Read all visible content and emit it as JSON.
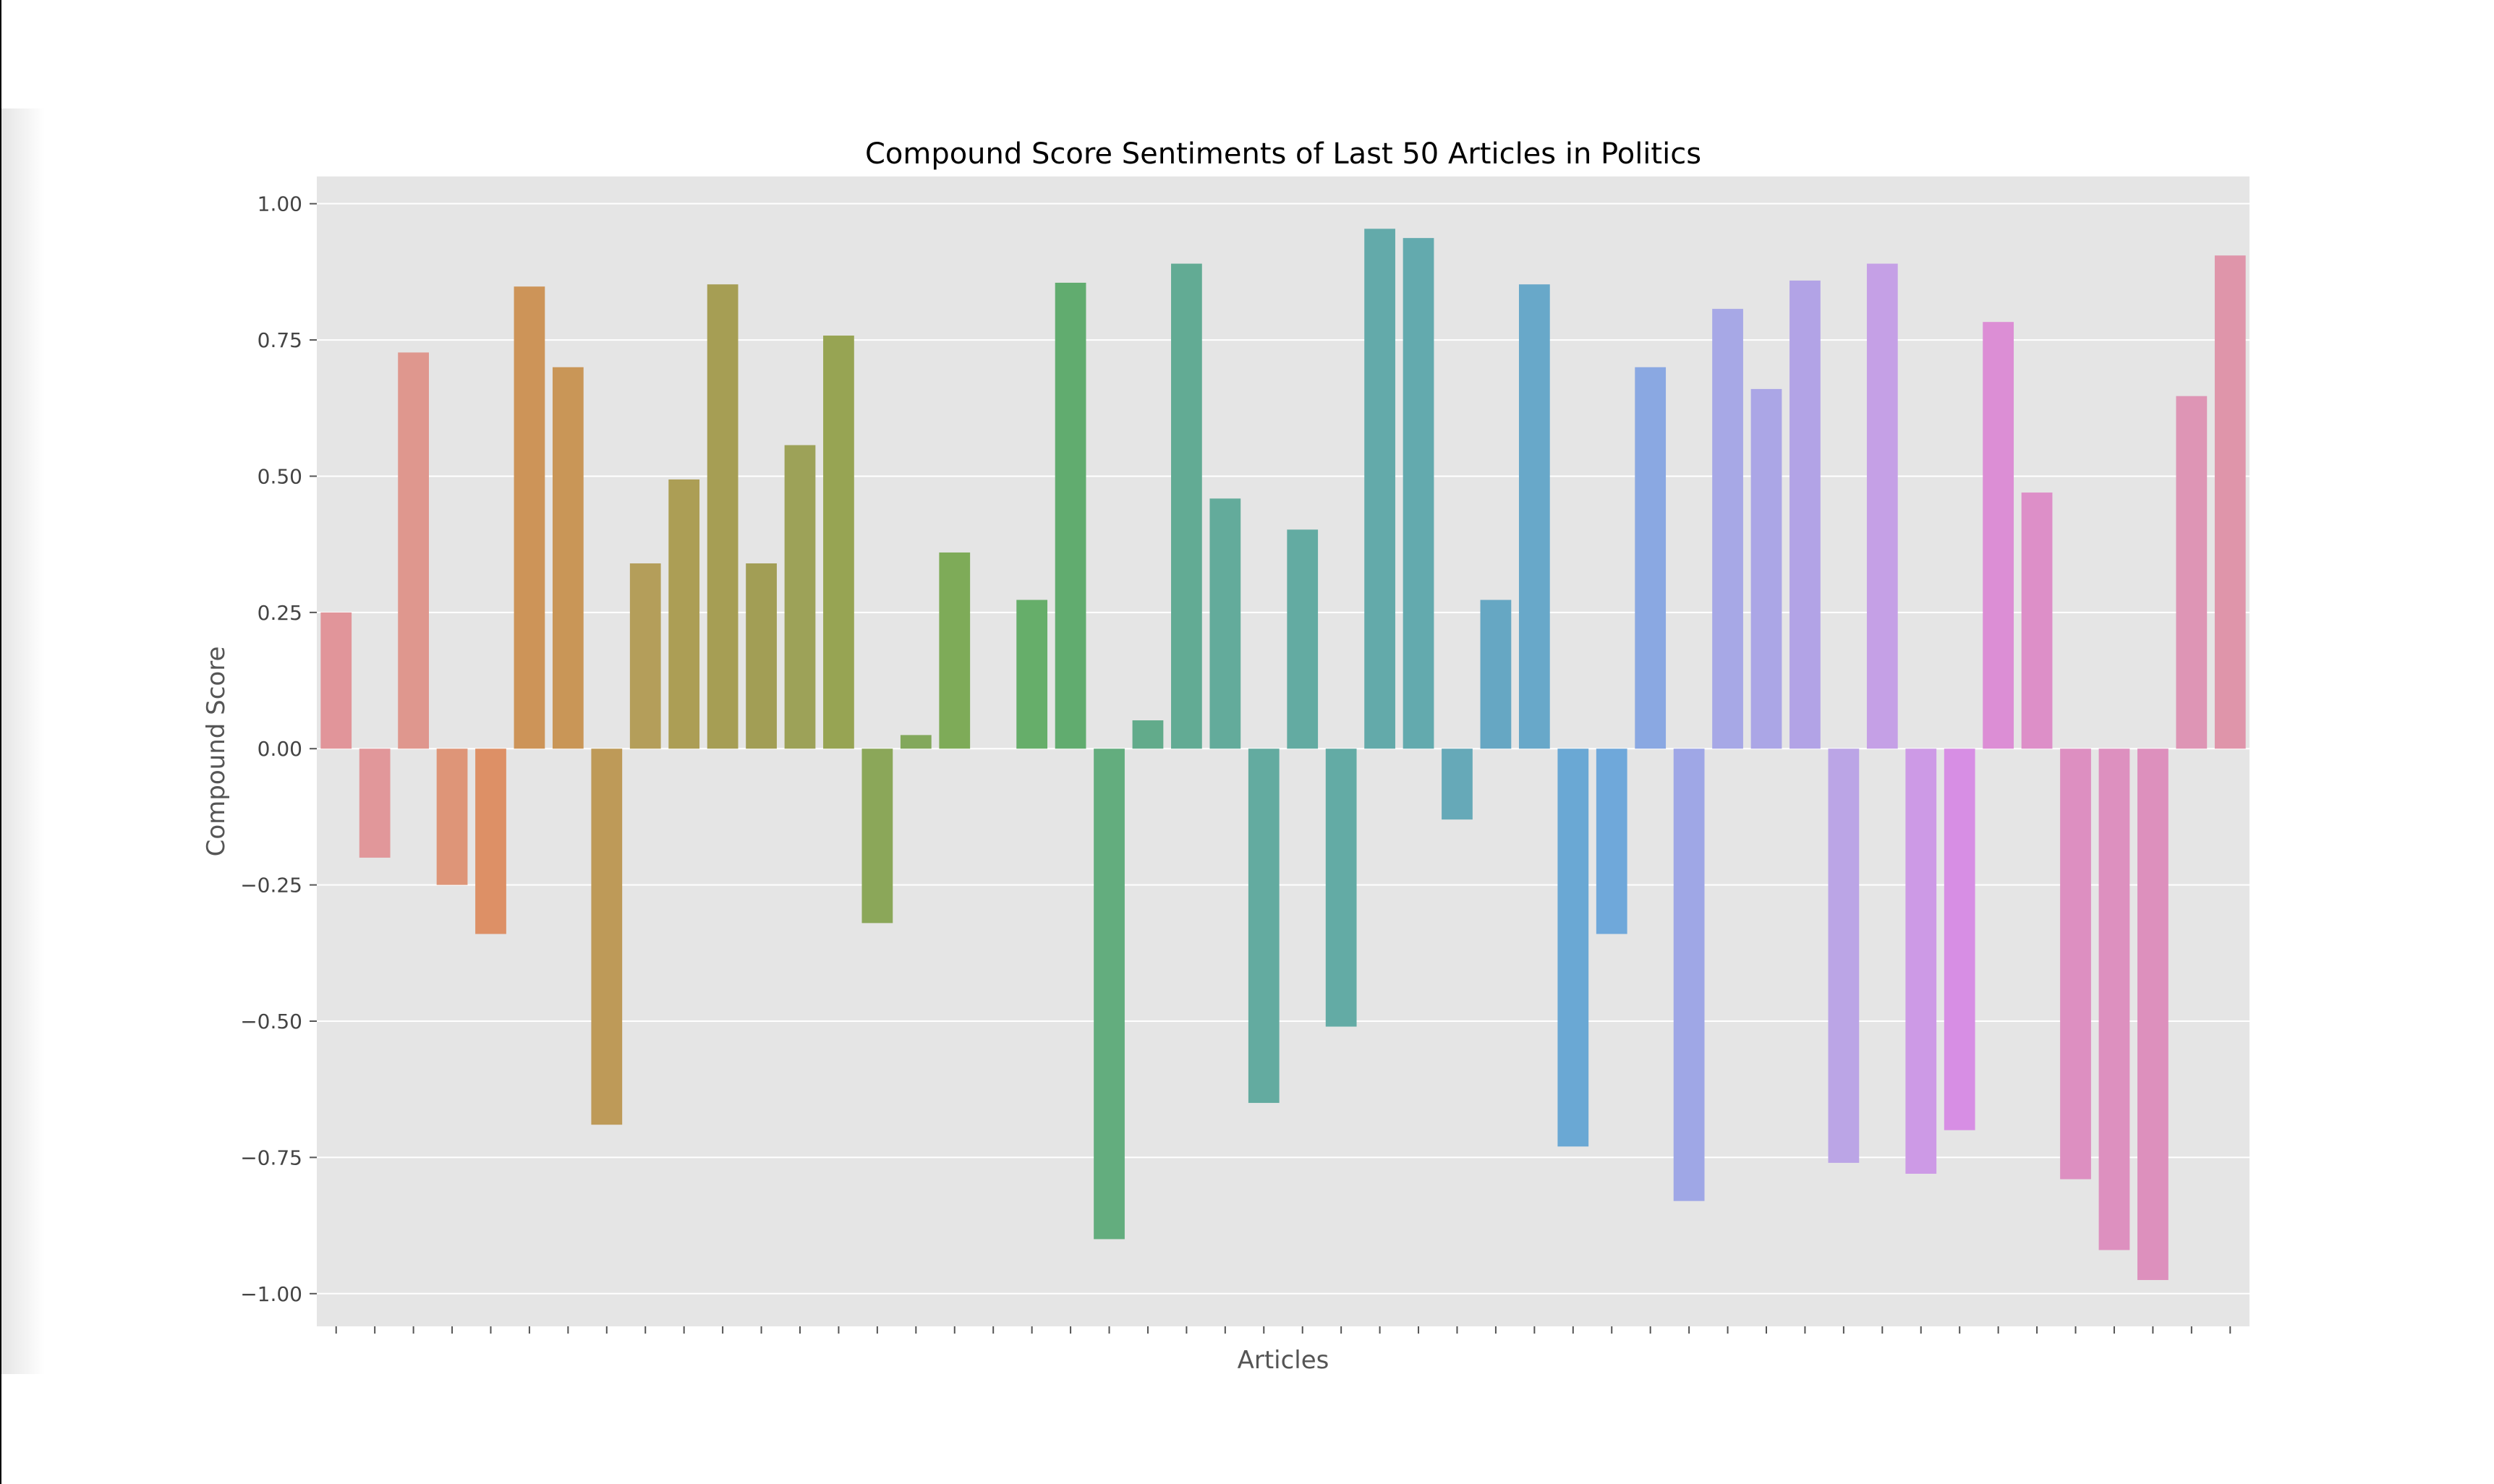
{
  "chart_data": {
    "type": "bar",
    "title": "Compound Score Sentiments of Last 50 Articles in Politics",
    "xlabel": "Articles",
    "ylabel": "Compound Score",
    "ylim": [
      -1.06,
      1.05
    ],
    "yticks": [
      1.0,
      0.75,
      0.5,
      0.25,
      0.0,
      -0.25,
      -0.5,
      -0.75,
      -1.0
    ],
    "ytick_labels": [
      "1.00",
      "0.75",
      "0.50",
      "0.25",
      "0.00",
      "−0.25",
      "−0.50",
      "−0.75",
      "−1.00"
    ],
    "grid": true,
    "background": "#e5e5e5",
    "values": [
      0.25,
      -0.2,
      0.727,
      -0.25,
      -0.34,
      0.848,
      0.7,
      -0.69,
      0.34,
      0.494,
      0.852,
      0.34,
      0.557,
      0.758,
      -0.32,
      0.025,
      0.36,
      0.0,
      0.273,
      0.855,
      -0.9,
      0.052,
      0.89,
      0.459,
      -0.65,
      0.402,
      -0.51,
      0.954,
      0.937,
      -0.13,
      0.273,
      0.852,
      -0.73,
      -0.34,
      0.7,
      -0.83,
      0.807,
      0.66,
      0.859,
      -0.76,
      0.89,
      -0.78,
      -0.7,
      0.783,
      0.47,
      -0.79,
      -0.92,
      -0.975,
      0.647,
      0.905
    ],
    "colors": [
      "#e1959a",
      "#e1979a",
      "#df978e",
      "#de9578",
      "#dd9066",
      "#cd9458",
      "#c99657",
      "#be9a58",
      "#b49e5a",
      "#ac9e55",
      "#a69e54",
      "#a29e55",
      "#9da258",
      "#97a453",
      "#8ba759",
      "#83a85c",
      "#7eab58",
      "#73ad62",
      "#66ae6a",
      "#61ac6f",
      "#63ad7e",
      "#62ab8b",
      "#62ab94",
      "#63ab9b",
      "#63aba0",
      "#63aba2",
      "#63aba5",
      "#63aaaa",
      "#63aaae",
      "#66a9b8",
      "#66a7c3",
      "#68a8c9",
      "#6aa8d4",
      "#6fa8da",
      "#8aa8e2",
      "#9fa7e6",
      "#a7a8e6",
      "#aba6e6",
      "#b2a3e6",
      "#bba5e6",
      "#c5a0e6",
      "#cd9ae6",
      "#d78ee4",
      "#dc8ed5",
      "#dd8fc8",
      "#dd8fc1",
      "#dd90bf",
      "#dd90bd",
      "#de95b5",
      "#df95aa"
    ]
  }
}
